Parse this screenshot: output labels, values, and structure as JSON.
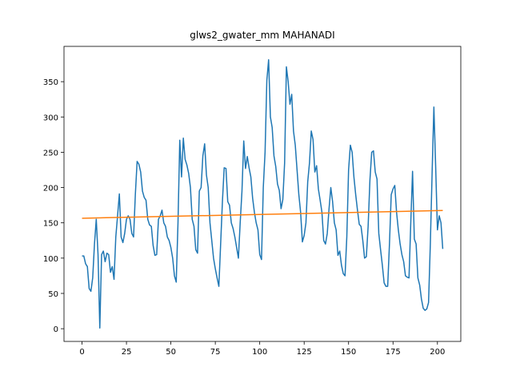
{
  "chart_data": {
    "type": "line",
    "title": "glws2_gwater_mm MAHANADI",
    "xlim": [
      -10.15,
      213.15
    ],
    "ylim": [
      -18,
      400
    ],
    "xticks": [
      0,
      25,
      50,
      75,
      100,
      125,
      150,
      175,
      200
    ],
    "yticks": [
      0,
      50,
      100,
      150,
      200,
      250,
      300,
      350
    ],
    "grid": false,
    "series": [
      {
        "color": "#1f77b4",
        "x": [
          0,
          1,
          2,
          3,
          4,
          5,
          6,
          7,
          8,
          9,
          10,
          11,
          12,
          13,
          14,
          15,
          16,
          17,
          18,
          19,
          20,
          21,
          22,
          23,
          24,
          25,
          26,
          27,
          28,
          29,
          30,
          31,
          32,
          33,
          34,
          35,
          36,
          37,
          38,
          39,
          40,
          41,
          42,
          43,
          44,
          45,
          46,
          47,
          48,
          49,
          50,
          51,
          52,
          53,
          54,
          55,
          56,
          57,
          58,
          59,
          60,
          61,
          62,
          63,
          64,
          65,
          66,
          67,
          68,
          69,
          70,
          71,
          72,
          73,
          74,
          75,
          76,
          77,
          78,
          79,
          80,
          81,
          82,
          83,
          84,
          85,
          86,
          87,
          88,
          89,
          90,
          91,
          92,
          93,
          94,
          95,
          96,
          97,
          98,
          99,
          100,
          101,
          102,
          103,
          104,
          105,
          106,
          107,
          108,
          109,
          110,
          111,
          112,
          113,
          114,
          115,
          116,
          117,
          118,
          119,
          120,
          121,
          122,
          123,
          124,
          125,
          126,
          127,
          128,
          129,
          130,
          131,
          132,
          133,
          134,
          135,
          136,
          137,
          138,
          139,
          140,
          141,
          142,
          143,
          144,
          145,
          146,
          147,
          148,
          149,
          150,
          151,
          152,
          153,
          154,
          155,
          156,
          157,
          158,
          159,
          160,
          161,
          162,
          163,
          164,
          165,
          166,
          167,
          168,
          169,
          170,
          171,
          172,
          173,
          174,
          175,
          176,
          177,
          178,
          179,
          180,
          181,
          182,
          183,
          184,
          185,
          186,
          187,
          188,
          189,
          190,
          191,
          192,
          193,
          194,
          195,
          196,
          197,
          198,
          199,
          200,
          201,
          202,
          203
        ],
        "values": [
          103,
          103,
          92,
          88,
          57,
          53,
          72,
          120,
          155,
          105,
          1,
          105,
          110,
          95,
          107,
          105,
          80,
          88,
          70,
          130,
          160,
          191,
          130,
          122,
          135,
          155,
          160,
          155,
          135,
          130,
          190,
          237,
          233,
          222,
          195,
          186,
          182,
          155,
          147,
          145,
          118,
          104,
          105,
          155,
          160,
          168,
          150,
          145,
          130,
          125,
          115,
          100,
          75,
          66,
          150,
          267,
          215,
          270,
          240,
          232,
          220,
          200,
          155,
          145,
          112,
          107,
          195,
          200,
          245,
          262,
          218,
          200,
          150,
          125,
          100,
          85,
          72,
          60,
          120,
          180,
          228,
          227,
          180,
          175,
          150,
          142,
          130,
          115,
          100,
          150,
          195,
          266,
          227,
          244,
          228,
          215,
          185,
          165,
          150,
          140,
          105,
          98,
          200,
          250,
          352,
          381,
          300,
          285,
          245,
          230,
          205,
          196,
          170,
          183,
          235,
          371,
          350,
          318,
          332,
          280,
          260,
          225,
          190,
          165,
          123,
          132,
          150,
          208,
          235,
          280,
          268,
          222,
          231,
          198,
          182,
          165,
          125,
          120,
          135,
          170,
          200,
          180,
          150,
          140,
          104,
          110,
          90,
          78,
          75,
          130,
          225,
          260,
          250,
          215,
          190,
          168,
          148,
          145,
          125,
          100,
          102,
          145,
          210,
          250,
          252,
          222,
          212,
          135,
          112,
          90,
          65,
          60,
          60,
          120,
          190,
          198,
          203,
          165,
          140,
          120,
          105,
          95,
          75,
          73,
          72,
          150,
          223,
          127,
          120,
          72,
          62,
          42,
          29,
          26,
          28,
          37,
          120,
          220,
          314,
          230,
          140,
          160,
          150,
          113
        ]
      },
      {
        "color": "#ff7f0e",
        "x": [
          0,
          203
        ],
        "values": [
          156.5,
          167.5
        ]
      }
    ]
  }
}
